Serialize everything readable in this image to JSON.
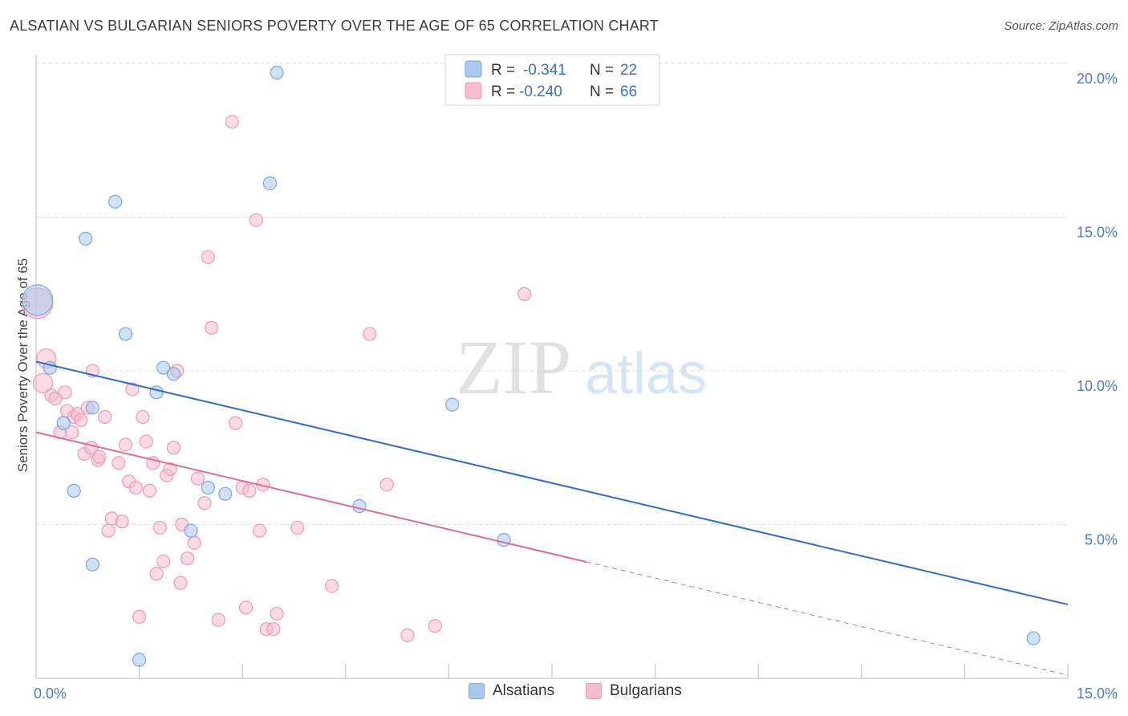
{
  "header": {
    "title": "ALSATIAN VS BULGARIAN SENIORS POVERTY OVER THE AGE OF 65 CORRELATION CHART",
    "source": "Source: ZipAtlas.com"
  },
  "watermark": {
    "zip": "ZIP",
    "atlas": "atlas"
  },
  "colors": {
    "alsatians_fill": "#a9c8ee",
    "alsatians_stroke": "#7aa7db",
    "alsatians_line": "#2f6fcc",
    "bulgarians_fill": "#f6bccd",
    "bulgarians_stroke": "#ec9ab3",
    "bulgarians_line": "#e06a92",
    "axis_text": "#4a7cc4",
    "grid": "#dddddd"
  },
  "legend_top": {
    "rows": [
      {
        "r_label": "R =",
        "r_value": "-0.341",
        "n_label": "N =",
        "n_value": "22"
      },
      {
        "r_label": "R =",
        "r_value": "-0.240",
        "n_label": "N =",
        "n_value": "66"
      }
    ]
  },
  "legend_bottom": {
    "items": [
      {
        "label": "Alsatians"
      },
      {
        "label": "Bulgarians"
      }
    ]
  },
  "chart_data": {
    "type": "scatter",
    "title": "ALSATIAN VS BULGARIAN SENIORS POVERTY OVER THE AGE OF 65 CORRELATION CHART",
    "xlabel": "",
    "ylabel": "Seniors Poverty Over the Age of 65",
    "xlim": [
      0,
      15
    ],
    "ylim": [
      0,
      20
    ],
    "x_tick_labels": [
      {
        "value": 0,
        "label": "0.0%"
      },
      {
        "value": 15,
        "label": "15.0%"
      }
    ],
    "y_tick_labels": [
      {
        "value": 5,
        "label": "5.0%"
      },
      {
        "value": 10,
        "label": "10.0%"
      },
      {
        "value": 15,
        "label": "15.0%"
      },
      {
        "value": 20,
        "label": "20.0%"
      }
    ],
    "grid": true,
    "series": [
      {
        "name": "Alsatians",
        "r": -0.341,
        "n": 22,
        "trend": {
          "x": [
            0,
            15
          ],
          "y": [
            10.3,
            2.4
          ],
          "dashed_from": null
        },
        "points": [
          [
            0.02,
            12.3,
            "large"
          ],
          [
            0.2,
            10.1
          ],
          [
            0.4,
            8.3
          ],
          [
            0.55,
            6.1
          ],
          [
            0.72,
            14.3
          ],
          [
            0.82,
            3.7
          ],
          [
            0.82,
            8.8
          ],
          [
            1.15,
            15.5
          ],
          [
            1.3,
            11.2
          ],
          [
            1.5,
            0.6
          ],
          [
            1.75,
            9.3
          ],
          [
            1.85,
            10.1
          ],
          [
            2.0,
            9.9
          ],
          [
            2.25,
            4.8
          ],
          [
            2.5,
            6.2
          ],
          [
            2.75,
            6.0
          ],
          [
            3.4,
            16.1
          ],
          [
            3.5,
            19.7
          ],
          [
            4.7,
            5.6
          ],
          [
            6.05,
            8.9
          ],
          [
            6.8,
            4.5
          ],
          [
            14.5,
            1.3
          ]
        ]
      },
      {
        "name": "Bulgarians",
        "r": -0.24,
        "n": 66,
        "trend": {
          "x": [
            0,
            15
          ],
          "y": [
            8.0,
            0.1
          ],
          "dashed_from": 8.0
        },
        "points": [
          [
            0.02,
            12.2,
            "large"
          ],
          [
            0.1,
            9.6,
            "medium"
          ],
          [
            0.15,
            10.4,
            "medium"
          ],
          [
            0.22,
            9.2
          ],
          [
            0.28,
            9.1
          ],
          [
            0.35,
            8.0
          ],
          [
            0.42,
            9.3
          ],
          [
            0.45,
            8.7
          ],
          [
            0.52,
            8.0
          ],
          [
            0.55,
            8.5
          ],
          [
            0.6,
            8.6
          ],
          [
            0.65,
            8.4
          ],
          [
            0.7,
            7.3
          ],
          [
            0.75,
            8.8
          ],
          [
            0.8,
            7.5
          ],
          [
            0.82,
            10.0
          ],
          [
            0.9,
            7.1
          ],
          [
            0.92,
            7.2
          ],
          [
            1.0,
            8.5
          ],
          [
            1.05,
            4.8
          ],
          [
            1.1,
            5.2
          ],
          [
            1.2,
            7.0
          ],
          [
            1.25,
            5.1
          ],
          [
            1.3,
            7.6
          ],
          [
            1.35,
            6.4
          ],
          [
            1.4,
            9.4
          ],
          [
            1.45,
            6.2
          ],
          [
            1.5,
            2.0
          ],
          [
            1.55,
            8.5
          ],
          [
            1.6,
            7.7
          ],
          [
            1.65,
            6.1
          ],
          [
            1.7,
            7.0
          ],
          [
            1.75,
            3.4
          ],
          [
            1.8,
            4.9
          ],
          [
            1.85,
            3.8
          ],
          [
            1.9,
            6.6
          ],
          [
            1.95,
            6.8
          ],
          [
            2.0,
            7.5
          ],
          [
            2.05,
            10.0
          ],
          [
            2.1,
            3.1
          ],
          [
            2.12,
            5.0
          ],
          [
            2.2,
            3.9
          ],
          [
            2.3,
            4.4
          ],
          [
            2.35,
            6.5
          ],
          [
            2.45,
            5.7
          ],
          [
            2.5,
            13.7
          ],
          [
            2.55,
            11.4
          ],
          [
            2.65,
            1.9
          ],
          [
            2.85,
            18.1
          ],
          [
            2.9,
            8.3
          ],
          [
            3.0,
            6.2
          ],
          [
            3.05,
            2.3
          ],
          [
            3.1,
            6.1
          ],
          [
            3.2,
            14.9
          ],
          [
            3.25,
            4.8
          ],
          [
            3.3,
            6.3
          ],
          [
            3.35,
            1.6
          ],
          [
            3.45,
            1.6
          ],
          [
            3.5,
            2.1
          ],
          [
            3.8,
            4.9
          ],
          [
            4.3,
            3.0
          ],
          [
            4.85,
            11.2
          ],
          [
            5.1,
            6.3
          ],
          [
            5.4,
            1.4
          ],
          [
            5.8,
            1.7
          ],
          [
            7.1,
            12.5
          ]
        ]
      }
    ]
  }
}
